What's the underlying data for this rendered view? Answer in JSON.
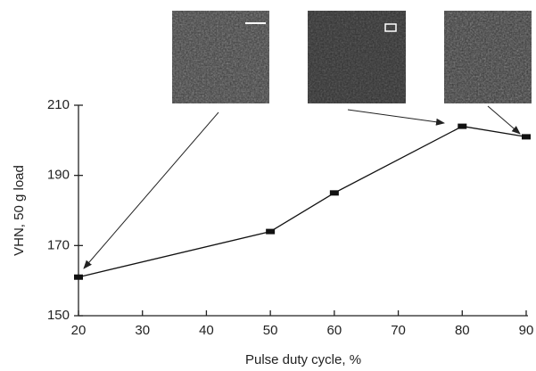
{
  "chart_data": {
    "type": "line",
    "x_label": "Pulse duty cycle, %",
    "y_label": "VHN, 50 g load",
    "x": [
      20,
      50,
      60,
      80,
      90
    ],
    "values": [
      161,
      174,
      185,
      204,
      201
    ],
    "color": "#111111",
    "xlim": [
      20,
      90
    ],
    "xticks": [
      20,
      30,
      40,
      50,
      60,
      70,
      80,
      90
    ],
    "ylim": [
      150,
      210
    ],
    "yticks": [
      150,
      170,
      190,
      210
    ]
  }
}
